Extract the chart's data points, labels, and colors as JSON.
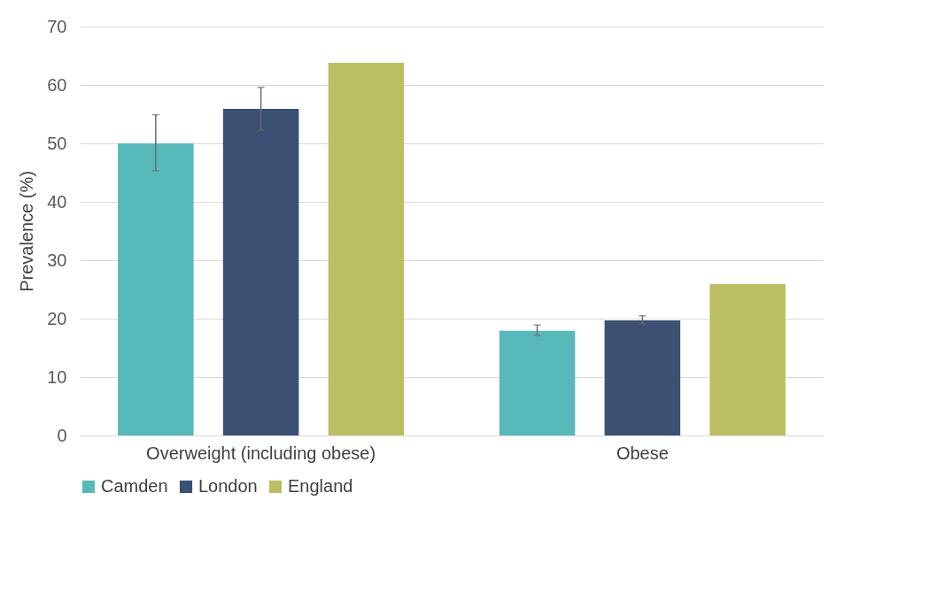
{
  "chart_data": {
    "type": "bar",
    "ylabel": "Prevalence (%)",
    "categories": [
      "Overweight (including obese)",
      "Obese"
    ],
    "series": [
      {
        "name": "Camden",
        "color": "#58b9bb",
        "values": [
          50.0,
          17.9
        ],
        "errors": [
          [
            45.3,
            54.9
          ],
          [
            17.1,
            18.9
          ]
        ]
      },
      {
        "name": "London",
        "color": "#3b5072",
        "values": [
          55.9,
          19.7
        ],
        "errors": [
          [
            52.3,
            59.6
          ],
          [
            19.1,
            20.5
          ]
        ]
      },
      {
        "name": "England",
        "color": "#bbbe62",
        "values": [
          63.8,
          25.9
        ]
      }
    ],
    "ylim": [
      0,
      70
    ],
    "yticks": [
      0,
      10,
      20,
      30,
      40,
      50,
      60,
      70
    ],
    "grid": "y",
    "legend": "bottom"
  }
}
